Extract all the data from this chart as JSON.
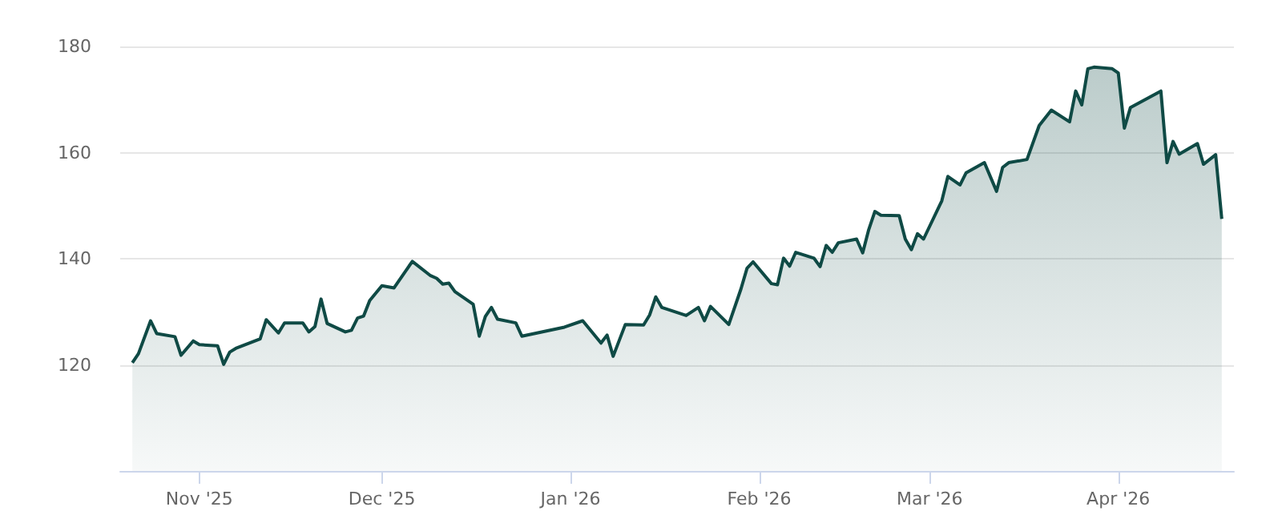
{
  "chart_data": {
    "type": "area",
    "color": "#0f4a45",
    "x": [
      "2025-10-21",
      "2025-10-22",
      "2025-10-24",
      "2025-10-25",
      "2025-10-28",
      "2025-10-29",
      "2025-10-31",
      "2025-11-01",
      "2025-11-04",
      "2025-11-05",
      "2025-11-06",
      "2025-11-07",
      "2025-11-11",
      "2025-11-12",
      "2025-11-14",
      "2025-11-15",
      "2025-11-18",
      "2025-11-19",
      "2025-11-20",
      "2025-11-21",
      "2025-11-22",
      "2025-11-25",
      "2025-11-26",
      "2025-11-27",
      "2025-11-28",
      "2025-11-29",
      "2025-12-01",
      "2025-12-03",
      "2025-12-06",
      "2025-12-09",
      "2025-12-10",
      "2025-12-11",
      "2025-12-12",
      "2025-12-13",
      "2025-12-16",
      "2025-12-17",
      "2025-12-18",
      "2025-12-19",
      "2025-12-20",
      "2025-12-23",
      "2025-12-24",
      "2025-12-31",
      "2026-01-03",
      "2026-01-06",
      "2026-01-07",
      "2026-01-08",
      "2026-01-10",
      "2026-01-13",
      "2026-01-14",
      "2026-01-15",
      "2026-01-16",
      "2026-01-20",
      "2026-01-22",
      "2026-01-23",
      "2026-01-24",
      "2026-01-27",
      "2026-01-29",
      "2026-01-30",
      "2026-01-31",
      "2026-02-03",
      "2026-02-04",
      "2026-02-05",
      "2026-02-06",
      "2026-02-07",
      "2026-02-10",
      "2026-02-11",
      "2026-02-12",
      "2026-02-13",
      "2026-02-14",
      "2026-02-17",
      "2026-02-18",
      "2026-02-19",
      "2026-02-20",
      "2026-02-21",
      "2026-02-24",
      "2026-02-25",
      "2026-02-26",
      "2026-02-27",
      "2026-02-28",
      "2026-03-03",
      "2026-03-04",
      "2026-03-06",
      "2026-03-07",
      "2026-03-10",
      "2026-03-12",
      "2026-03-13",
      "2026-03-14",
      "2026-03-17",
      "2026-03-19",
      "2026-03-21",
      "2026-03-24",
      "2026-03-25",
      "2026-03-26",
      "2026-03-27",
      "2026-03-28",
      "2026-03-31",
      "2026-04-01",
      "2026-04-02",
      "2026-04-03",
      "2026-04-08",
      "2026-04-09",
      "2026-04-10",
      "2026-04-11",
      "2026-04-14",
      "2026-04-15",
      "2026-04-17",
      "2026-04-18"
    ],
    "values": [
      120.4,
      122.1,
      128.3,
      125.9,
      125.3,
      121.8,
      124.5,
      123.8,
      123.6,
      120.1,
      122.4,
      123.1,
      124.9,
      128.5,
      126.0,
      127.9,
      127.9,
      126.2,
      127.2,
      132.4,
      127.8,
      126.2,
      126.5,
      128.8,
      129.2,
      132.1,
      134.9,
      134.5,
      139.5,
      136.8,
      136.3,
      135.2,
      135.4,
      133.8,
      131.4,
      125.4,
      129.1,
      130.8,
      128.6,
      127.9,
      125.4,
      127.1,
      128.3,
      124.1,
      125.6,
      121.6,
      127.6,
      127.5,
      129.4,
      132.8,
      130.8,
      129.3,
      130.8,
      128.3,
      131.0,
      127.6,
      134.3,
      138.2,
      139.4,
      135.3,
      135.1,
      140.1,
      138.6,
      141.2,
      140.1,
      138.5,
      142.5,
      141.2,
      143.0,
      143.7,
      141.1,
      145.5,
      148.9,
      148.2,
      148.1,
      143.7,
      141.7,
      144.7,
      143.7,
      150.9,
      155.5,
      153.9,
      156.2,
      158.1,
      152.7,
      157.2,
      158.1,
      158.7,
      165.1,
      168.0,
      165.8,
      171.6,
      169.0,
      175.8,
      176.1,
      175.8,
      175.0,
      164.6,
      168.5,
      171.6,
      158.1,
      162.1,
      159.7,
      161.7,
      157.8,
      159.6,
      147.5
    ],
    "xlim": [
      "2025-10-19",
      "2026-04-20"
    ],
    "xticks": [
      {
        "value": "2025-11-01",
        "label": "Nov '25"
      },
      {
        "value": "2025-12-01",
        "label": "Dec '25"
      },
      {
        "value": "2026-01-01",
        "label": "Jan '26"
      },
      {
        "value": "2026-02-01",
        "label": "Feb '26"
      },
      {
        "value": "2026-03-01",
        "label": "Mar '26"
      },
      {
        "value": "2026-04-01",
        "label": "Apr '26"
      }
    ],
    "ylim": [
      100,
      180
    ],
    "yticks": [
      120,
      140,
      160,
      180
    ],
    "grid": "y",
    "marker": "none",
    "line_style": "solid"
  }
}
